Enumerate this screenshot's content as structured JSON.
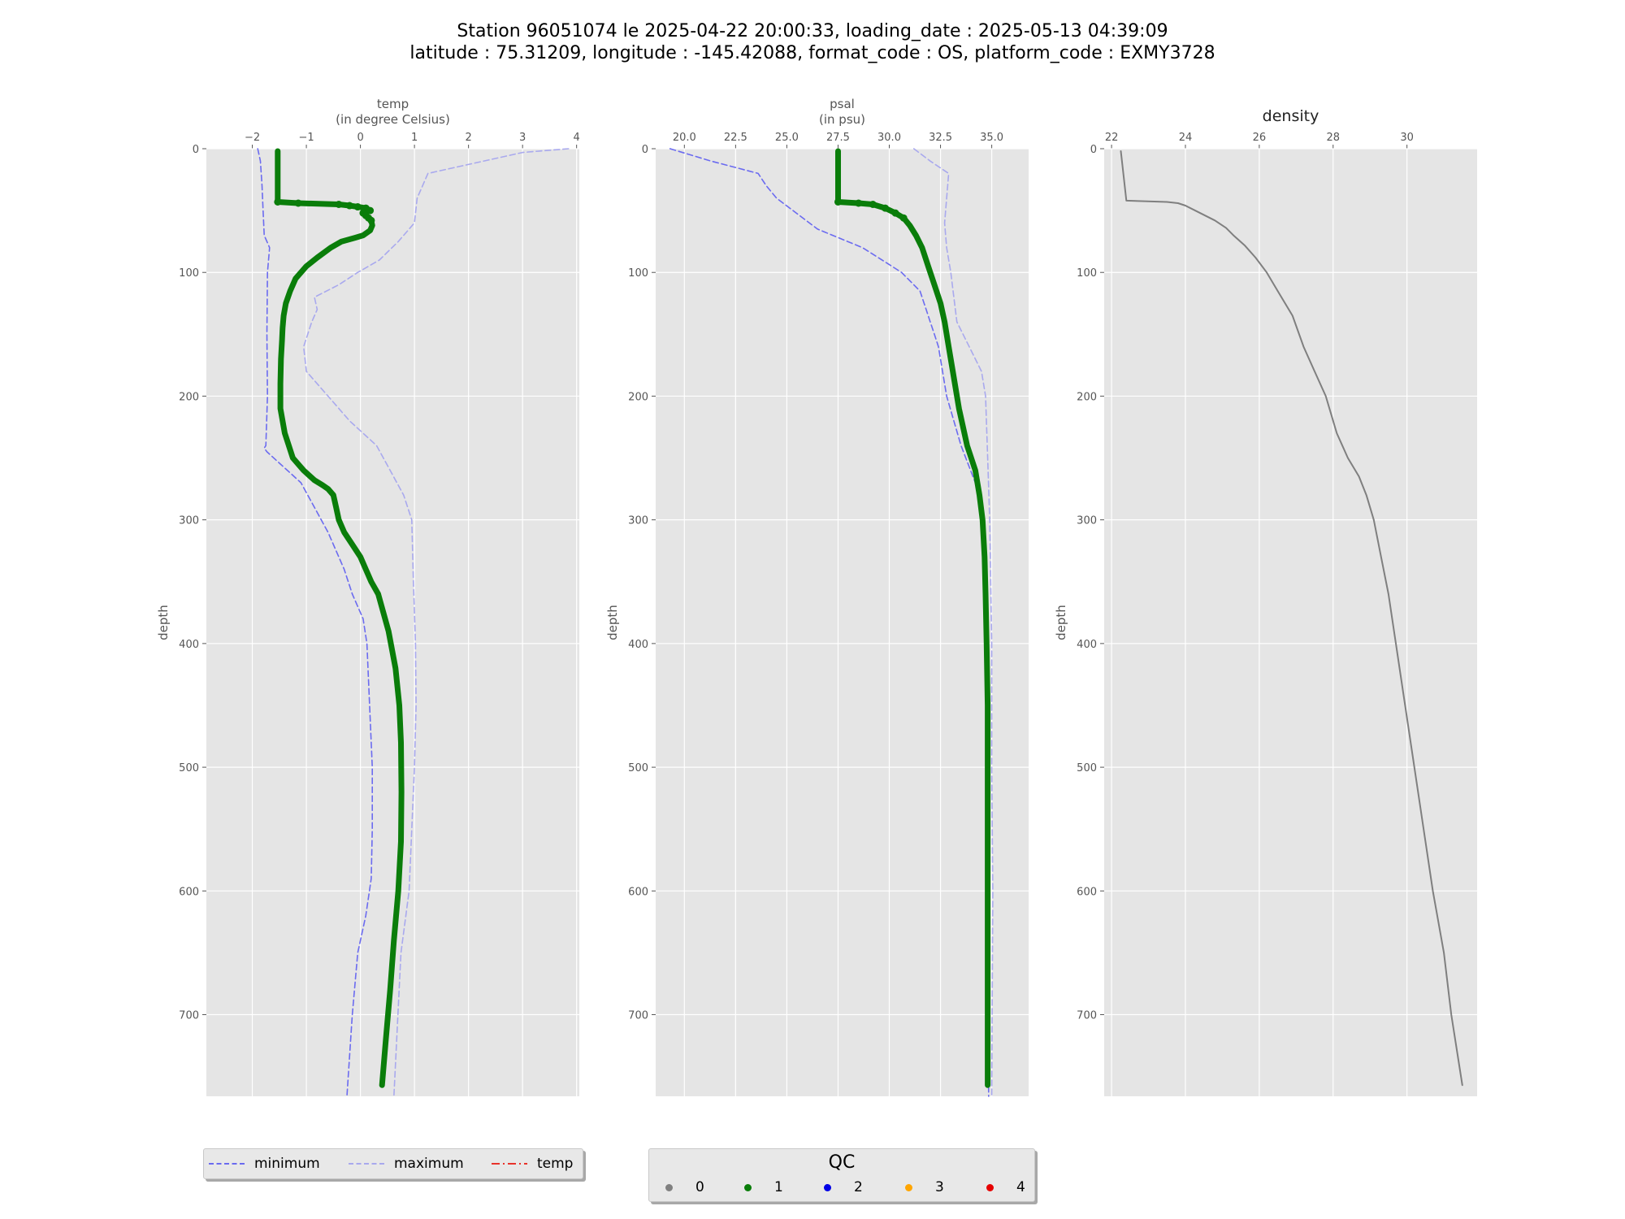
{
  "title": {
    "line1": "Station 96051074 le 2025-04-22 20:00:33, loading_date : 2025-05-13 04:39:09",
    "line2": "latitude : 75.31209, longitude : -145.42088, format_code : OS, platform_code : EXMY3728"
  },
  "colors": {
    "panel_bg": "#e5e5e5",
    "grid": "#ffffff",
    "minimum": "#6b6bf0",
    "maximum": "#a9a9ee",
    "qc1": "#0a7d0a",
    "density": "#7f7f7f",
    "legend_temp": "#e8332b"
  },
  "chart_data": [
    {
      "id": "temp",
      "type": "line",
      "title": "temp",
      "subtitle": "(in degree Celsius)",
      "ylabel": "depth",
      "xlim": [
        -2.85,
        4.05
      ],
      "ylim": [
        766,
        0
      ],
      "xticks": [
        -2,
        -1,
        0,
        1,
        2,
        3,
        4
      ],
      "xtick_labels": [
        "−2",
        "−1",
        "0",
        "1",
        "2",
        "3",
        "4"
      ],
      "yticks": [
        0,
        100,
        200,
        300,
        400,
        500,
        600,
        700
      ],
      "grid": true,
      "series": [
        {
          "name": "minimum",
          "style": "dashed",
          "x": [
            -1.9,
            -1.85,
            -1.82,
            -1.8,
            -1.78,
            -1.68,
            -1.72,
            -1.73,
            -1.72,
            -1.75,
            -1.78,
            -1.73,
            -1.1,
            -0.6,
            -0.3,
            -0.15,
            0.05,
            0.12,
            0.17,
            0.22,
            0.22,
            0.2,
            0.1,
            -0.05,
            -0.15,
            -0.25
          ],
          "y": [
            0,
            10,
            30,
            50,
            70,
            80,
            100,
            150,
            200,
            240,
            242,
            245,
            270,
            310,
            340,
            360,
            380,
            400,
            450,
            500,
            550,
            590,
            620,
            650,
            700,
            766
          ]
        },
        {
          "name": "maximum",
          "style": "dashed",
          "x": [
            3.85,
            3.0,
            1.25,
            1.05,
            1.0,
            0.7,
            0.35,
            -0.05,
            -0.4,
            -0.85,
            -0.8,
            -0.9,
            -1.05,
            -1.0,
            -0.6,
            -0.2,
            0.3,
            0.8,
            0.95,
            0.98,
            1.02,
            1.03,
            1.0,
            0.95,
            0.9,
            0.75,
            0.62
          ],
          "y": [
            0,
            3,
            20,
            40,
            60,
            75,
            90,
            100,
            110,
            120,
            130,
            140,
            160,
            180,
            200,
            220,
            240,
            280,
            300,
            350,
            400,
            450,
            500,
            550,
            600,
            650,
            766
          ]
        },
        {
          "name": "1",
          "style": "solid-markers",
          "x": [
            -1.53,
            -1.53,
            -1.53,
            -1.53,
            -1.15,
            -0.4,
            -0.2,
            -0.05,
            0.1,
            0.18,
            0.05,
            0.1,
            0.15,
            0.2,
            0.22,
            0.18,
            0.05,
            -0.1,
            -0.35,
            -0.55,
            -0.8,
            -1.0,
            -1.2,
            -1.3,
            -1.38,
            -1.42,
            -1.44,
            -1.45,
            -1.47,
            -1.48,
            -1.48,
            -1.4,
            -1.25,
            -1.05,
            -0.85,
            -0.7,
            -0.6,
            -0.5,
            -0.45,
            -0.4,
            -0.3,
            -0.15,
            0.0,
            0.1,
            0.2,
            0.33,
            0.52,
            0.65,
            0.72,
            0.75,
            0.76,
            0.75,
            0.7,
            0.62,
            0.55,
            0.47,
            0.4
          ],
          "y": [
            2,
            20,
            40,
            43,
            44,
            45,
            46,
            47,
            48,
            50,
            52,
            54,
            56,
            58,
            62,
            66,
            70,
            72,
            75,
            80,
            88,
            95,
            105,
            115,
            125,
            135,
            145,
            155,
            170,
            190,
            210,
            230,
            250,
            260,
            268,
            272,
            275,
            280,
            290,
            300,
            310,
            320,
            330,
            340,
            350,
            360,
            390,
            420,
            450,
            480,
            520,
            560,
            600,
            640,
            680,
            720,
            757
          ]
        }
      ]
    },
    {
      "id": "psal",
      "type": "line",
      "title": "psal",
      "subtitle": "(in psu)",
      "ylabel": "depth",
      "xlim": [
        18.6,
        36.8
      ],
      "ylim": [
        766,
        0
      ],
      "xticks": [
        20.0,
        22.5,
        25.0,
        27.5,
        30.0,
        32.5,
        35.0
      ],
      "xtick_labels": [
        "20.0",
        "22.5",
        "25.0",
        "27.5",
        "30.0",
        "32.5",
        "35.0"
      ],
      "yticks": [
        0,
        100,
        200,
        300,
        400,
        500,
        600,
        700
      ],
      "grid": true,
      "series": [
        {
          "name": "minimum",
          "style": "dashed",
          "x": [
            19.3,
            21.3,
            23.6,
            24.0,
            24.5,
            25.3,
            26.5,
            28.7,
            30.6,
            31.5,
            31.8,
            32.0,
            32.2,
            32.4,
            32.8,
            33.5,
            34.2,
            34.5,
            34.7,
            34.75,
            34.8,
            34.85
          ],
          "y": [
            0,
            10,
            20,
            30,
            40,
            50,
            65,
            80,
            100,
            115,
            130,
            140,
            150,
            160,
            200,
            240,
            270,
            290,
            320,
            400,
            600,
            766
          ]
        },
        {
          "name": "maximum",
          "style": "dashed",
          "x": [
            31.2,
            32.0,
            32.9,
            32.8,
            32.7,
            32.8,
            33.0,
            33.3,
            34.5,
            34.7,
            34.8,
            34.9,
            34.95,
            35.0,
            35.0,
            35.05,
            35.0
          ],
          "y": [
            0,
            10,
            20,
            40,
            60,
            80,
            100,
            140,
            180,
            200,
            250,
            300,
            350,
            400,
            500,
            600,
            766
          ]
        },
        {
          "name": "1",
          "style": "solid-markers",
          "x": [
            27.5,
            27.5,
            27.5,
            27.5,
            28.5,
            29.2,
            29.8,
            30.3,
            30.7,
            31.0,
            31.3,
            31.6,
            31.9,
            32.2,
            32.5,
            32.7,
            32.9,
            33.1,
            33.4,
            33.8,
            34.2,
            34.4,
            34.55,
            34.65,
            34.7,
            34.75,
            34.8,
            34.8,
            34.8,
            34.8,
            34.8
          ],
          "y": [
            2,
            20,
            40,
            43,
            44,
            45,
            48,
            52,
            56,
            62,
            70,
            80,
            95,
            110,
            125,
            140,
            160,
            180,
            210,
            240,
            260,
            280,
            300,
            330,
            360,
            400,
            450,
            500,
            600,
            700,
            757
          ]
        }
      ]
    },
    {
      "id": "density",
      "type": "line",
      "title": "density",
      "ylabel": "depth",
      "xlim": [
        21.8,
        31.9
      ],
      "ylim": [
        766,
        0
      ],
      "xticks": [
        22,
        24,
        26,
        28,
        30
      ],
      "xtick_labels": [
        "22",
        "24",
        "26",
        "28",
        "30"
      ],
      "yticks": [
        0,
        100,
        200,
        300,
        400,
        500,
        600,
        700
      ],
      "grid": true,
      "series": [
        {
          "name": "density",
          "x": [
            22.25,
            22.4,
            23.5,
            23.8,
            24.0,
            24.4,
            24.8,
            25.1,
            25.3,
            25.6,
            25.9,
            26.2,
            26.5,
            26.9,
            27.2,
            27.5,
            27.8,
            28.1,
            28.4,
            28.7,
            28.9,
            29.1,
            29.3,
            29.5,
            29.7,
            29.9,
            30.1,
            30.3,
            30.5,
            30.7,
            31.0,
            31.2,
            31.5
          ],
          "y": [
            2,
            42,
            43,
            44,
            46,
            52,
            58,
            64,
            70,
            78,
            88,
            100,
            115,
            135,
            160,
            180,
            200,
            230,
            250,
            265,
            280,
            300,
            330,
            360,
            400,
            440,
            480,
            520,
            560,
            600,
            650,
            700,
            757
          ]
        }
      ]
    }
  ],
  "legend_series": {
    "items": [
      {
        "label": "minimum",
        "style": "dashed",
        "color": "#6b6bf0"
      },
      {
        "label": "maximum",
        "style": "dashed",
        "color": "#a9a9ee"
      },
      {
        "label": "temp",
        "style": "dashdot",
        "color": "#e8332b"
      }
    ]
  },
  "legend_qc": {
    "title": "QC",
    "items": [
      {
        "label": "0",
        "color": "#808080"
      },
      {
        "label": "1",
        "color": "#0a7d0a"
      },
      {
        "label": "2",
        "color": "#0000e6"
      },
      {
        "label": "3",
        "color": "#ffa500"
      },
      {
        "label": "4",
        "color": "#e60000"
      }
    ]
  }
}
